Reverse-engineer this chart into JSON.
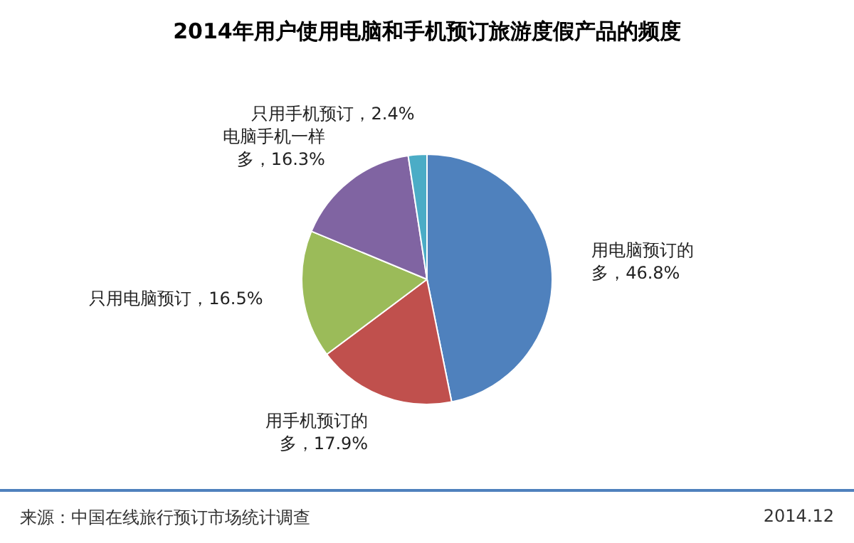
{
  "chart_data": {
    "type": "pie",
    "title": "2014年用户使用电脑和手机预订旅游度假产品的频度",
    "categories": [
      "用电脑预订的多",
      "用手机预订的多",
      "只用电脑预订",
      "电脑手机一样多",
      "只用手机预订"
    ],
    "values": [
      46.8,
      17.9,
      16.5,
      16.3,
      2.4
    ],
    "value_labels": [
      "46.8%",
      "17.9%",
      "16.5%",
      "16.3%",
      "2.4%"
    ],
    "colors": [
      "#4f81bd",
      "#c0504d",
      "#9bbb59",
      "#8064a2",
      "#4bacc6"
    ],
    "annotations": [
      "来源：中国在线旅行预订市场统计调查",
      "2014.12"
    ]
  }
}
